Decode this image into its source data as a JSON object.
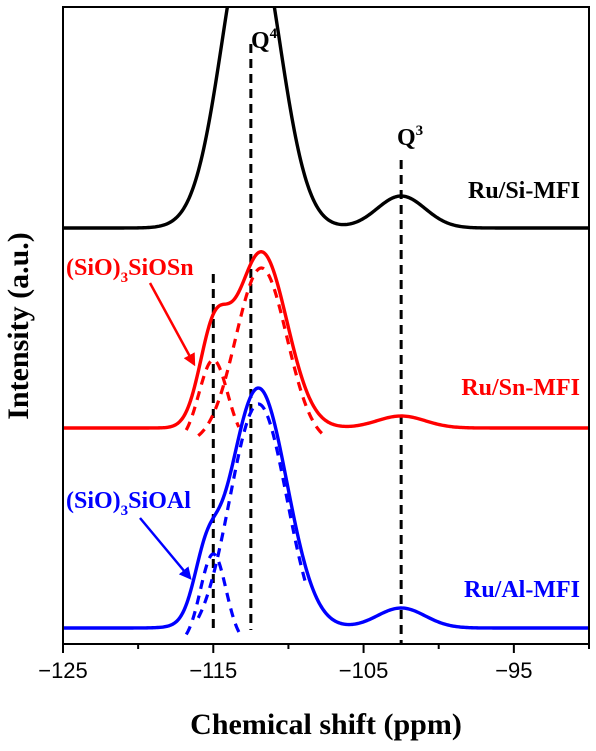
{
  "chart_data": {
    "type": "line",
    "title": "",
    "xlabel": "Chemical shift (ppm)",
    "ylabel": "Intensity (a.u.)",
    "xlim": [
      -125,
      -90
    ],
    "x_ticks": [
      -125,
      -115,
      -105,
      -95
    ],
    "x_tick_labels": [
      "−125",
      "−115",
      "−105",
      "−95"
    ],
    "x_minor_ticks": [
      -120,
      -110,
      -100,
      -90
    ],
    "grid": false,
    "series": [
      {
        "name": "Ru/Si-MFI",
        "color": "#000000",
        "style": "solid",
        "baseline": 2.0,
        "offset": 0,
        "components": [
          {
            "center": -112.5,
            "height": 1.55,
            "width": 1.9
          },
          {
            "center": -102.5,
            "height": 0.16,
            "width": 1.6
          }
        ]
      },
      {
        "name": "Ru/Sn-MFI",
        "color": "#ff0000",
        "style": "solid",
        "baseline": 1.0,
        "offset": 0,
        "components": [
          {
            "center": -111.8,
            "height": 0.88,
            "width": 1.7
          },
          {
            "center": -115,
            "height": 0.42,
            "width": 0.95
          },
          {
            "center": -102.5,
            "height": 0.06,
            "width": 1.6
          }
        ]
      },
      {
        "name": "Ru/Sn-MFI fit Q4",
        "color": "#ff0000",
        "style": "dashed",
        "baseline": 1.0,
        "offset": -0.08,
        "components": [
          {
            "center": -111.8,
            "height": 0.88,
            "width": 1.7
          }
        ],
        "range": [
          -116,
          -107.5
        ]
      },
      {
        "name": "(SiO)3SiOSn",
        "color": "#ff0000",
        "style": "dashed",
        "baseline": 1.0,
        "offset": -0.08,
        "components": [
          {
            "center": -115,
            "height": 0.42,
            "width": 0.95
          }
        ],
        "range": [
          -116.8,
          -113.3
        ]
      },
      {
        "name": "Ru/Al-MFI",
        "color": "#0000ff",
        "style": "solid",
        "baseline": 0.0,
        "offset": 0,
        "components": [
          {
            "center": -112,
            "height": 1.2,
            "width": 1.9
          },
          {
            "center": -115.5,
            "height": 0.25,
            "width": 0.8
          },
          {
            "center": -102.5,
            "height": 0.1,
            "width": 1.6
          }
        ]
      },
      {
        "name": "Ru/Al-MFI fit Q4",
        "color": "#0000ff",
        "style": "dashed",
        "baseline": 0.0,
        "offset": -0.08,
        "components": [
          {
            "center": -112,
            "height": 1.2,
            "width": 1.9
          }
        ],
        "range": [
          -116,
          -108.8
        ]
      },
      {
        "name": "(SiO)3SiOAl",
        "color": "#0000ff",
        "style": "dashed",
        "baseline": 0.0,
        "offset": -0.08,
        "components": [
          {
            "center": -115,
            "height": 0.45,
            "width": 0.85
          }
        ],
        "range": [
          -116.8,
          -113.2
        ]
      }
    ],
    "reference_lines": [
      {
        "x": -112.5,
        "label": "Q4"
      },
      {
        "x": -102.5,
        "label": "Q3"
      },
      {
        "x": -115,
        "label": ""
      }
    ],
    "annotations": [
      {
        "label": "(SiO)3SiOSn",
        "color": "#ff0000"
      },
      {
        "label": "(SiO)3SiOAl",
        "color": "#0000ff"
      }
    ],
    "sample_labels": [
      {
        "text": "Ru/Si-MFI",
        "color": "#000000"
      },
      {
        "text": "Ru/Sn-MFI",
        "color": "#ff0000"
      },
      {
        "text": "Ru/Al-MFI",
        "color": "#0000ff"
      }
    ]
  }
}
